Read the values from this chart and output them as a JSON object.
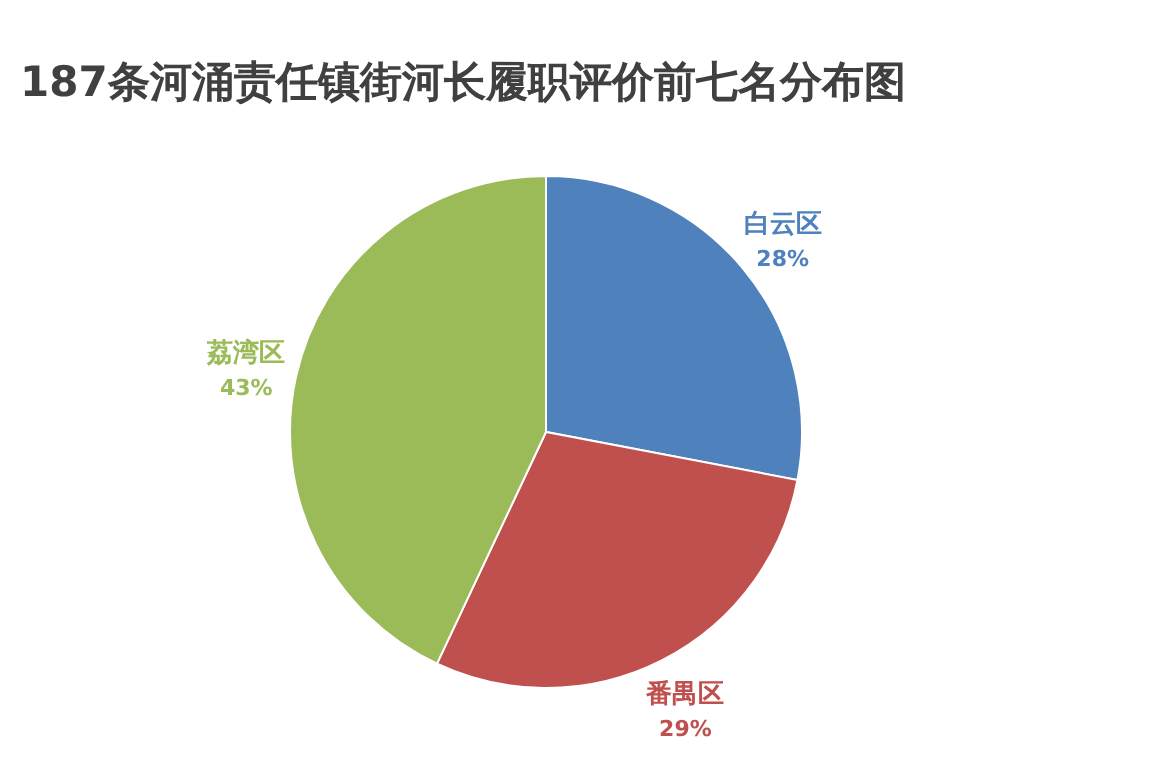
{
  "chart_data": {
    "type": "pie",
    "title": "187条河涌责任镇街河长履职评价前七名分布图",
    "categories": [
      "白云区",
      "番禺区",
      "荔湾区"
    ],
    "values": [
      28,
      29,
      43
    ],
    "colors": [
      "#4f81bd",
      "#c0504d",
      "#9bbb59"
    ],
    "value_labels": [
      "28%",
      "29%",
      "43%"
    ]
  }
}
